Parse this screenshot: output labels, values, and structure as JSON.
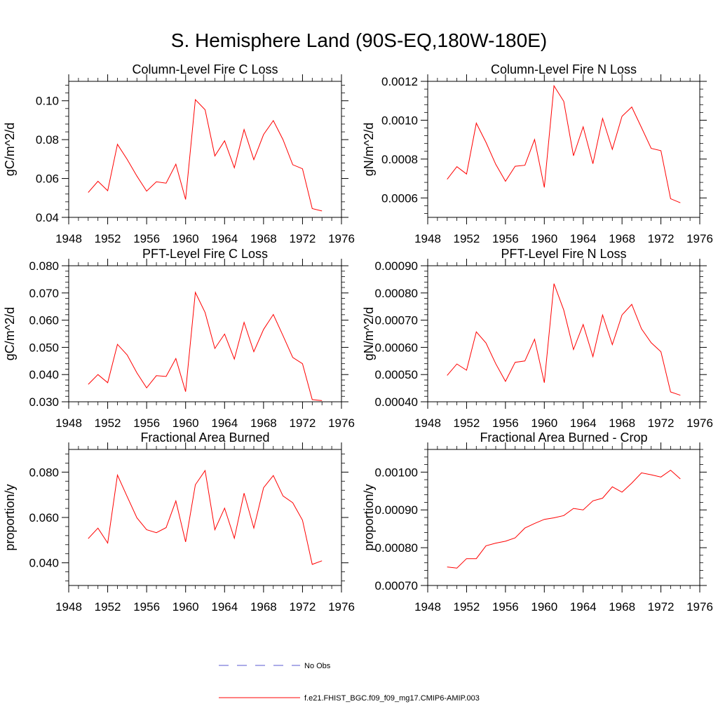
{
  "figure": {
    "title": "S. Hemisphere Land (90S-EQ,180W-180E)"
  },
  "legend": {
    "position": "bottom-center",
    "entries": [
      {
        "label": "No Obs",
        "color": "#5a5ad2",
        "style": "dashed"
      },
      {
        "label": "f.e21.FHIST_BGC.f09_f09_mg17.CMIP6-AMIP.003",
        "color": "#ff0000",
        "style": "solid"
      }
    ]
  },
  "chart_data": [
    {
      "type": "line",
      "title": "Column-Level Fire C Loss",
      "ylabel": "gC/m^2/d",
      "xlabel": "",
      "xlim": [
        1948,
        1976
      ],
      "ylim": [
        0.04,
        0.11
      ],
      "xticks": [
        "1948",
        "1952",
        "1956",
        "1960",
        "1964",
        "1968",
        "1972",
        "1976"
      ],
      "yticks": [
        {
          "value": 0.04,
          "label": "0.04"
        },
        {
          "value": 0.06,
          "label": "0.06"
        },
        {
          "value": 0.08,
          "label": "0.08"
        },
        {
          "value": 0.1,
          "label": "0.10"
        }
      ],
      "series": [
        {
          "name": "f.e21.FHIST_BGC.f09_f09_mg17.CMIP6-AMIP.003",
          "color": "#ff0000",
          "x": [
            1950,
            1951,
            1952,
            1953,
            1954,
            1955,
            1956,
            1957,
            1958,
            1959,
            1960,
            1961,
            1962,
            1963,
            1964,
            1965,
            1966,
            1967,
            1968,
            1969,
            1970,
            1971,
            1972,
            1973,
            1974
          ],
          "values": [
            0.0528,
            0.0586,
            0.0537,
            0.0776,
            0.0698,
            0.0612,
            0.0535,
            0.0583,
            0.0576,
            0.0674,
            0.0492,
            0.1006,
            0.0954,
            0.0716,
            0.0794,
            0.0655,
            0.0852,
            0.0697,
            0.0826,
            0.0898,
            0.08,
            0.0671,
            0.065,
            0.0445,
            0.0433
          ]
        }
      ]
    },
    {
      "type": "line",
      "title": "Column-Level Fire N Loss",
      "ylabel": "gN/m^2/d",
      "xlabel": "",
      "xlim": [
        1948,
        1976
      ],
      "ylim": [
        0.0005,
        0.0012
      ],
      "xticks": [
        "1948",
        "1952",
        "1956",
        "1960",
        "1964",
        "1968",
        "1972",
        "1976"
      ],
      "yticks": [
        {
          "value": 0.0006,
          "label": "0.0006"
        },
        {
          "value": 0.0008,
          "label": "0.0008"
        },
        {
          "value": 0.001,
          "label": "0.0010"
        },
        {
          "value": 0.0012,
          "label": "0.0012"
        }
      ],
      "series": [
        {
          "name": "f.e21.FHIST_BGC.f09_f09_mg17.CMIP6-AMIP.003",
          "color": "#ff0000",
          "x": [
            1950,
            1951,
            1952,
            1953,
            1954,
            1955,
            1956,
            1957,
            1958,
            1959,
            1960,
            1961,
            1962,
            1963,
            1964,
            1965,
            1966,
            1967,
            1968,
            1969,
            1970,
            1971,
            1972,
            1973,
            1974
          ],
          "values": [
            0.000696,
            0.000761,
            0.000723,
            0.000985,
            0.000886,
            0.000773,
            0.000686,
            0.000763,
            0.000768,
            0.000901,
            0.000654,
            0.001177,
            0.001097,
            0.000817,
            0.000966,
            0.000776,
            0.001009,
            0.00085,
            0.00102,
            0.001068,
            0.000962,
            0.000855,
            0.000843,
            0.000596,
            0.000575
          ]
        }
      ]
    },
    {
      "type": "line",
      "title": "PFT-Level Fire C Loss",
      "ylabel": "gC/m^2/d",
      "xlabel": "",
      "xlim": [
        1948,
        1976
      ],
      "ylim": [
        0.03,
        0.08
      ],
      "xticks": [
        "1948",
        "1952",
        "1956",
        "1960",
        "1964",
        "1968",
        "1972",
        "1976"
      ],
      "yticks": [
        {
          "value": 0.03,
          "label": "0.030"
        },
        {
          "value": 0.04,
          "label": "0.040"
        },
        {
          "value": 0.05,
          "label": "0.050"
        },
        {
          "value": 0.06,
          "label": "0.060"
        },
        {
          "value": 0.07,
          "label": "0.070"
        },
        {
          "value": 0.08,
          "label": "0.080"
        }
      ],
      "series": [
        {
          "name": "f.e21.FHIST_BGC.f09_f09_mg17.CMIP6-AMIP.003",
          "color": "#ff0000",
          "x": [
            1950,
            1951,
            1952,
            1953,
            1954,
            1955,
            1956,
            1957,
            1958,
            1959,
            1960,
            1961,
            1962,
            1963,
            1964,
            1965,
            1966,
            1967,
            1968,
            1969,
            1970,
            1971,
            1972,
            1973,
            1974
          ],
          "values": [
            0.0364,
            0.04,
            0.037,
            0.0511,
            0.0472,
            0.0406,
            0.0351,
            0.0396,
            0.0393,
            0.0459,
            0.0337,
            0.0702,
            0.0628,
            0.0496,
            0.0549,
            0.0457,
            0.0592,
            0.0484,
            0.0566,
            0.0621,
            0.0543,
            0.0463,
            0.044,
            0.0308,
            0.0304
          ]
        }
      ]
    },
    {
      "type": "line",
      "title": "PFT-Level Fire N Loss",
      "ylabel": "gN/m^2/d",
      "xlabel": "",
      "xlim": [
        1948,
        1976
      ],
      "ylim": [
        0.0004,
        0.0009
      ],
      "xticks": [
        "1948",
        "1952",
        "1956",
        "1960",
        "1964",
        "1968",
        "1972",
        "1976"
      ],
      "yticks": [
        {
          "value": 0.0004,
          "label": "0.00040"
        },
        {
          "value": 0.0005,
          "label": "0.00050"
        },
        {
          "value": 0.0006,
          "label": "0.00060"
        },
        {
          "value": 0.0007,
          "label": "0.00070"
        },
        {
          "value": 0.0008,
          "label": "0.00080"
        },
        {
          "value": 0.0009,
          "label": "0.00090"
        }
      ],
      "series": [
        {
          "name": "f.e21.FHIST_BGC.f09_f09_mg17.CMIP6-AMIP.003",
          "color": "#ff0000",
          "x": [
            1950,
            1951,
            1952,
            1953,
            1954,
            1955,
            1956,
            1957,
            1958,
            1959,
            1960,
            1961,
            1962,
            1963,
            1964,
            1965,
            1966,
            1967,
            1968,
            1969,
            1970,
            1971,
            1972,
            1973,
            1974
          ],
          "values": [
            0.000497,
            0.000539,
            0.000516,
            0.000657,
            0.000616,
            0.00054,
            0.000475,
            0.000545,
            0.00055,
            0.00063,
            0.00047,
            0.000834,
            0.000737,
            0.000592,
            0.000684,
            0.000566,
            0.000719,
            0.00061,
            0.000719,
            0.000758,
            0.000668,
            0.000617,
            0.000584,
            0.000436,
            0.000424
          ]
        }
      ]
    },
    {
      "type": "line",
      "title": "Fractional Area Burned",
      "ylabel": "proportion/y",
      "xlabel": "",
      "xlim": [
        1948,
        1976
      ],
      "ylim": [
        0.03,
        0.09
      ],
      "xticks": [
        "1948",
        "1952",
        "1956",
        "1960",
        "1964",
        "1968",
        "1972",
        "1976"
      ],
      "yticks": [
        {
          "value": 0.04,
          "label": "0.040"
        },
        {
          "value": 0.06,
          "label": "0.060"
        },
        {
          "value": 0.08,
          "label": "0.080"
        }
      ],
      "series": [
        {
          "name": "f.e21.FHIST_BGC.f09_f09_mg17.CMIP6-AMIP.003",
          "color": "#ff0000",
          "x": [
            1950,
            1951,
            1952,
            1953,
            1954,
            1955,
            1956,
            1957,
            1958,
            1959,
            1960,
            1961,
            1962,
            1963,
            1964,
            1965,
            1966,
            1967,
            1968,
            1969,
            1970,
            1971,
            1972,
            1973,
            1974
          ],
          "values": [
            0.0507,
            0.0553,
            0.0487,
            0.0787,
            0.0692,
            0.0598,
            0.0546,
            0.0533,
            0.0555,
            0.0673,
            0.0492,
            0.0744,
            0.0807,
            0.0546,
            0.0641,
            0.0508,
            0.0707,
            0.0553,
            0.0731,
            0.0785,
            0.0695,
            0.0665,
            0.0588,
            0.0393,
            0.0409
          ]
        }
      ]
    },
    {
      "type": "line",
      "title": "Fractional Area Burned - Crop",
      "ylabel": "proportion/y",
      "xlabel": "",
      "xlim": [
        1948,
        1976
      ],
      "ylim": [
        0.0007,
        0.00106
      ],
      "xticks": [
        "1948",
        "1952",
        "1956",
        "1960",
        "1964",
        "1968",
        "1972",
        "1976"
      ],
      "yticks": [
        {
          "value": 0.0007,
          "label": "0.00070"
        },
        {
          "value": 0.0008,
          "label": "0.00080"
        },
        {
          "value": 0.0009,
          "label": "0.00090"
        },
        {
          "value": 0.001,
          "label": "0.00100"
        }
      ],
      "series": [
        {
          "name": "f.e21.FHIST_BGC.f09_f09_mg17.CMIP6-AMIP.003",
          "color": "#ff0000",
          "x": [
            1950,
            1951,
            1952,
            1953,
            1954,
            1955,
            1956,
            1957,
            1958,
            1959,
            1960,
            1961,
            1962,
            1963,
            1964,
            1965,
            1966,
            1967,
            1968,
            1969,
            1970,
            1971,
            1972,
            1973,
            1974
          ],
          "values": [
            0.000749,
            0.000746,
            0.000771,
            0.000771,
            0.000805,
            0.000812,
            0.000817,
            0.000826,
            0.000852,
            0.000864,
            0.000875,
            0.000879,
            0.000885,
            0.000904,
            0.0009,
            0.000924,
            0.000931,
            0.000961,
            0.000947,
            0.000971,
            0.000998,
            0.000993,
            0.000987,
            0.001005,
            0.000982
          ]
        }
      ]
    }
  ]
}
